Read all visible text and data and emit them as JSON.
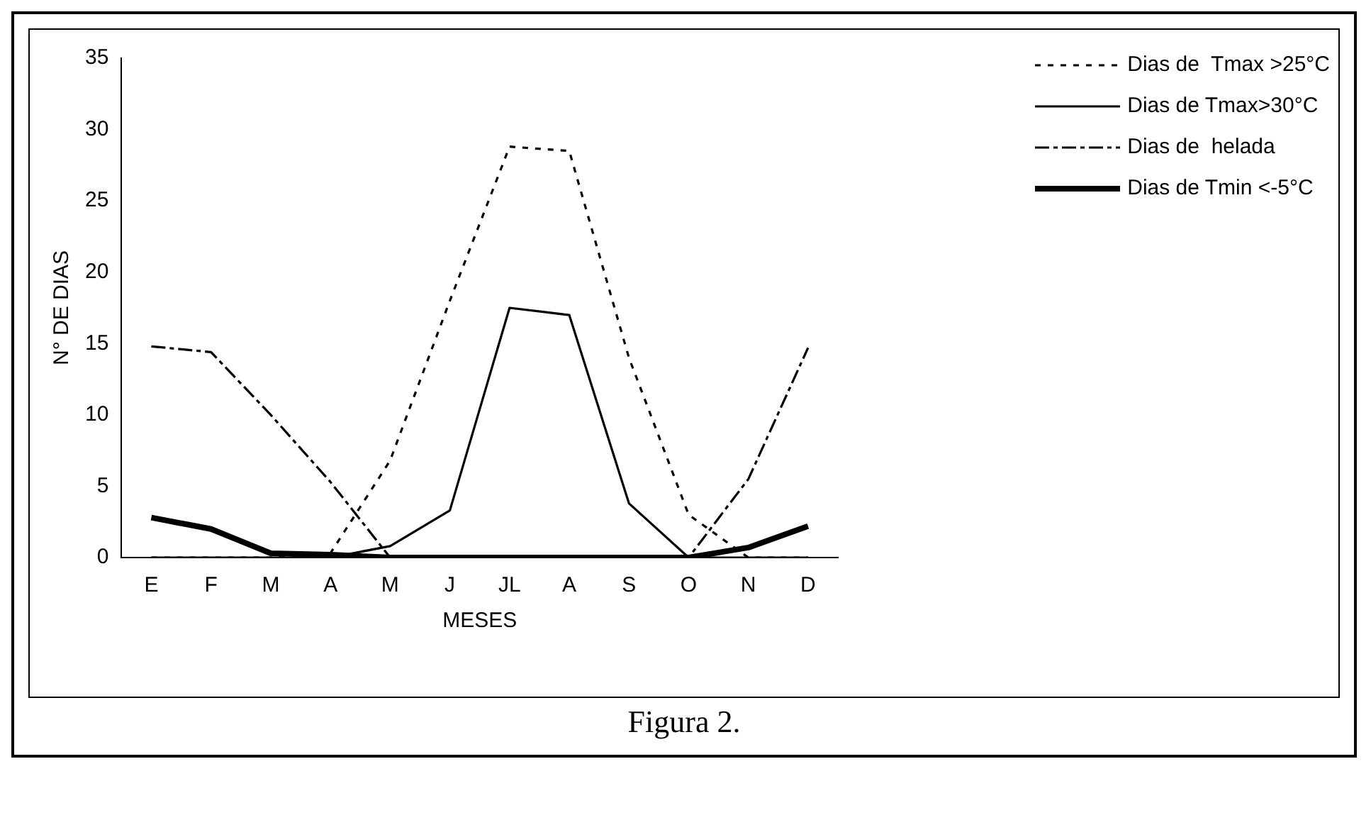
{
  "chart_data": {
    "type": "line",
    "xlabel": "MESES",
    "ylabel": "N° DE DIAS",
    "annotations": [
      "Figura 2."
    ],
    "categories": [
      "E",
      "F",
      "M",
      "A",
      "M",
      "J",
      "JL",
      "A",
      "S",
      "O",
      "N",
      "D"
    ],
    "series": [
      {
        "name": "Dias de  Tmax >25°C",
        "color": "#000000",
        "line_style": "dotted",
        "values": [
          0,
          0,
          0,
          0.3,
          6.8,
          18,
          28.8,
          28.5,
          14,
          3,
          0,
          0
        ]
      },
      {
        "name": "Dias de Tmax>30°C",
        "color": "#000000",
        "line_style": "solid",
        "values": [
          0,
          0,
          0,
          0,
          0.8,
          3.3,
          17.5,
          17,
          3.8,
          0,
          0,
          0
        ]
      },
      {
        "name": "Dias de  helada",
        "color": "#000000",
        "line_style": "dashed",
        "values": [
          14.8,
          14.4,
          10,
          5.3,
          0,
          0,
          0,
          0,
          0,
          0,
          5.5,
          14.7
        ]
      },
      {
        "name": "Dias de Tmin <-5°C",
        "color": "#000000",
        "line_style": "solid",
        "values": [
          2.8,
          2,
          0.3,
          0.2,
          0,
          0,
          0,
          0,
          0,
          0,
          0.7,
          2.2
        ]
      }
    ],
    "ylim": [
      0,
      35
    ],
    "yticks": [
      0,
      5,
      10,
      15,
      20,
      25,
      30,
      35
    ],
    "grid": false,
    "legend": "top right",
    "marker": "none"
  }
}
